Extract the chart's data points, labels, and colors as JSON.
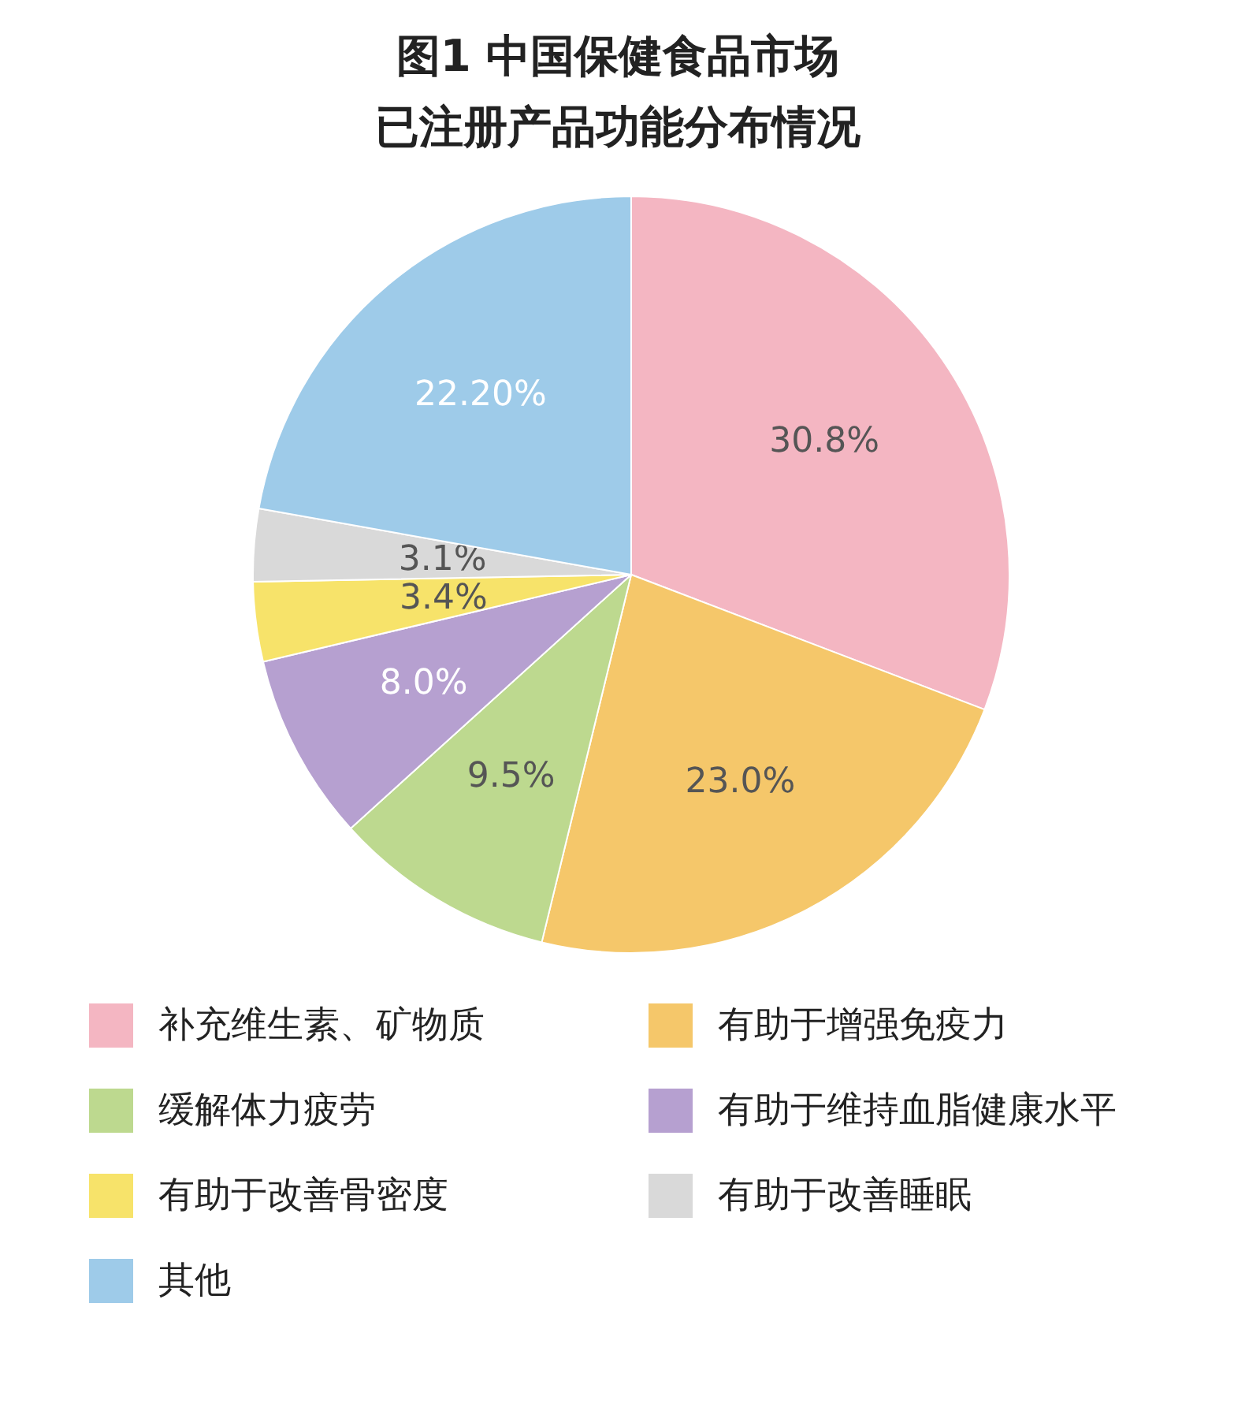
{
  "chart_data": {
    "type": "pie",
    "title": "图1 中国保健食品市场",
    "subtitle": "已注册产品功能分布情况",
    "categories": [
      "补充维生素、矿物质",
      "有助于增强免疫力",
      "缓解体力疲劳",
      "有助于维持血脂健康水平",
      "有助于改善骨密度",
      "有助于改善睡眠",
      "其他"
    ],
    "values": [
      30.8,
      23.0,
      9.5,
      8.0,
      3.4,
      3.1,
      22.2
    ],
    "value_labels": [
      "30.8%",
      "23.0%",
      "9.5%",
      "8.0%",
      "3.4%",
      "3.1%",
      "22.20%"
    ],
    "colors": [
      "#f4b6c2",
      "#f5c76a",
      "#bdd98f",
      "#b6a0d0",
      "#f7e36a",
      "#d9d9d9",
      "#9ecbe9"
    ],
    "legend": "bottom"
  }
}
